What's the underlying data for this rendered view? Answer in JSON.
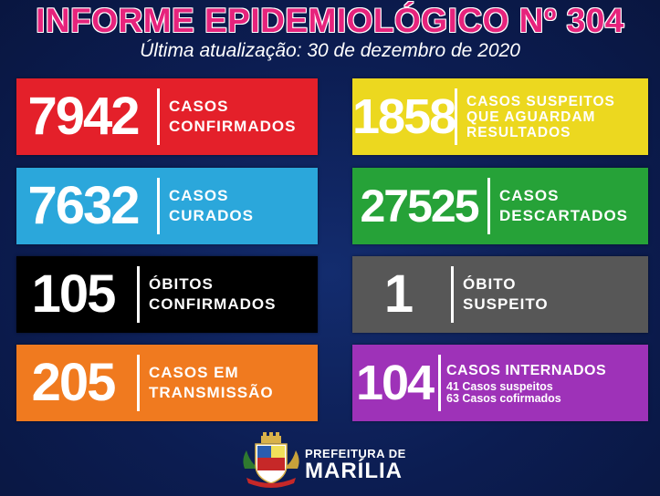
{
  "header": {
    "title": "INFORME EPIDEMIOLÓGICO Nº 304",
    "subtitle": "Última atualização: 30 de dezembro de 2020"
  },
  "cards": {
    "confirmed": {
      "value": "7942",
      "line1": "CASOS",
      "line2": "CONFIRMADOS",
      "color": "#e4202a"
    },
    "suspected": {
      "value": "1858",
      "line1": "CASOS SUSPEITOS",
      "line2": "QUE AGUARDAM",
      "line3": "RESULTADOS",
      "color": "#ecd81f"
    },
    "cured": {
      "value": "7632",
      "line1": "CASOS",
      "line2": "CURADOS",
      "color": "#2ba7db"
    },
    "discarded": {
      "value": "27525",
      "line1": "CASOS",
      "line2": "DESCARTADOS",
      "color": "#26a238"
    },
    "deaths": {
      "value": "105",
      "line1": "ÓBITOS",
      "line2": "CONFIRMADOS",
      "color": "#000000"
    },
    "suspect_death": {
      "value": "1",
      "line1": "ÓBITO",
      "line2": "SUSPEITO",
      "color": "#575757"
    },
    "transmission": {
      "value": "205",
      "line1": "CASOS EM",
      "line2": "TRANSMISSÃO",
      "color": "#f07a1f"
    },
    "hospitalized": {
      "value": "104",
      "line1": "CASOS INTERNADOS",
      "sub1": "41 Casos suspeitos",
      "sub2": "63 Casos cofirmados",
      "color": "#9e32b8"
    }
  },
  "footer": {
    "line1": "PREFEITURA DE",
    "line2": "MARÍLIA",
    "logo_icon": "coat-of-arms-icon"
  }
}
